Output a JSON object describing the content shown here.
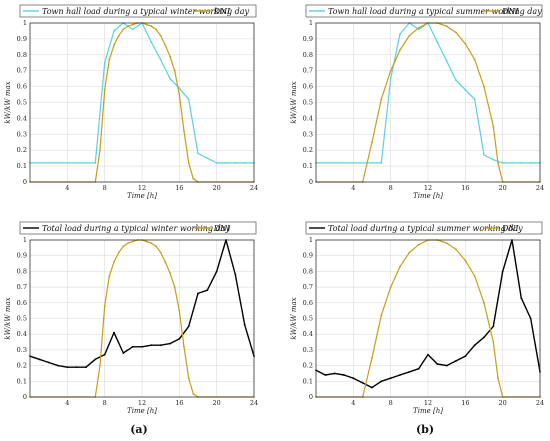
{
  "panel_labels": [
    "(a)",
    "(b)"
  ],
  "colors": {
    "town": "#5ccfe6",
    "dni": "#c99d1a",
    "total": "#000000"
  },
  "chart_data": [
    {
      "type": "line",
      "xlabel": "Time [h]",
      "ylabel": "kW/kW max",
      "xlim": [
        0,
        24
      ],
      "ylim": [
        0,
        1
      ],
      "xticks": [
        4,
        8,
        12,
        16,
        20,
        24
      ],
      "yticks": [
        0,
        0.1,
        0.2,
        0.3,
        0.4,
        0.5,
        0.6,
        0.7,
        0.8,
        0.9,
        1
      ],
      "grid": true,
      "legend_position": "top",
      "series": [
        {
          "name": "Town hall load during a typical winter working day",
          "color": "#5ccfe6",
          "x": [
            0,
            7,
            8,
            9,
            10,
            11,
            12,
            13,
            14,
            15,
            16,
            17,
            18,
            19,
            20,
            21,
            22,
            23,
            24
          ],
          "y": [
            0.12,
            0.12,
            0.75,
            0.95,
            1.0,
            0.96,
            1.0,
            0.88,
            0.77,
            0.65,
            0.59,
            0.52,
            0.18,
            0.15,
            0.12,
            0.12,
            0.12,
            0.12,
            0.12
          ]
        },
        {
          "name": "DNI",
          "color": "#c99d1a",
          "x": [
            0,
            7,
            7.5,
            8,
            8.5,
            9,
            9.5,
            10,
            10.5,
            11,
            11.5,
            12,
            12.5,
            13,
            13.5,
            14,
            14.5,
            15,
            15.5,
            16,
            16.5,
            17,
            17.5,
            18,
            24
          ],
          "y": [
            0,
            0,
            0.2,
            0.58,
            0.77,
            0.86,
            0.92,
            0.96,
            0.98,
            0.99,
            1.0,
            1.0,
            0.99,
            0.98,
            0.96,
            0.92,
            0.86,
            0.79,
            0.7,
            0.55,
            0.32,
            0.12,
            0.02,
            0,
            0
          ]
        }
      ]
    },
    {
      "type": "line",
      "xlabel": "Time [h]",
      "ylabel": "kW/kW max",
      "xlim": [
        0,
        24
      ],
      "ylim": [
        0,
        1
      ],
      "xticks": [
        4,
        8,
        12,
        16,
        20,
        24
      ],
      "yticks": [
        0,
        0.1,
        0.2,
        0.3,
        0.4,
        0.5,
        0.6,
        0.7,
        0.8,
        0.9,
        1
      ],
      "grid": true,
      "legend_position": "top",
      "series": [
        {
          "name": "Town hall load during a typical summer working day",
          "color": "#5ccfe6",
          "x": [
            0,
            7,
            8,
            9,
            10,
            11,
            12,
            13,
            14,
            15,
            16,
            17,
            18,
            19,
            20,
            21,
            22,
            23,
            24
          ],
          "y": [
            0.12,
            0.12,
            0.65,
            0.93,
            1.0,
            0.96,
            1.0,
            0.88,
            0.76,
            0.64,
            0.58,
            0.52,
            0.17,
            0.14,
            0.12,
            0.12,
            0.12,
            0.12,
            0.12
          ]
        },
        {
          "name": "DNI",
          "color": "#c99d1a",
          "x": [
            0,
            5,
            6,
            7,
            8,
            9,
            10,
            11,
            12,
            13,
            14,
            15,
            16,
            17,
            18,
            19,
            19.5,
            20,
            24
          ],
          "y": [
            0,
            0,
            0.25,
            0.52,
            0.7,
            0.83,
            0.92,
            0.97,
            1.0,
            1.0,
            0.98,
            0.94,
            0.87,
            0.77,
            0.6,
            0.35,
            0.12,
            0,
            0
          ]
        }
      ]
    },
    {
      "type": "line",
      "xlabel": "Time [h]",
      "ylabel": "kW/kW max",
      "xlim": [
        0,
        24
      ],
      "ylim": [
        0,
        1
      ],
      "xticks": [
        4,
        8,
        12,
        16,
        20,
        24
      ],
      "yticks": [
        0,
        0.1,
        0.2,
        0.3,
        0.4,
        0.5,
        0.6,
        0.7,
        0.8,
        0.9,
        1
      ],
      "grid": true,
      "legend_position": "top",
      "series": [
        {
          "name": "Total load during a typical winter working day",
          "color": "#000000",
          "x": [
            0,
            1,
            2,
            3,
            4,
            5,
            6,
            7,
            8,
            9,
            10,
            11,
            12,
            13,
            14,
            15,
            16,
            17,
            18,
            19,
            20,
            21,
            22,
            23,
            24
          ],
          "y": [
            0.26,
            0.24,
            0.22,
            0.2,
            0.19,
            0.19,
            0.19,
            0.24,
            0.27,
            0.41,
            0.28,
            0.32,
            0.32,
            0.33,
            0.33,
            0.34,
            0.37,
            0.45,
            0.66,
            0.68,
            0.8,
            1.0,
            0.78,
            0.46,
            0.26
          ]
        },
        {
          "name": "DNI",
          "color": "#c99d1a",
          "x": [
            0,
            7,
            7.5,
            8,
            8.5,
            9,
            9.5,
            10,
            10.5,
            11,
            11.5,
            12,
            12.5,
            13,
            13.5,
            14,
            14.5,
            15,
            15.5,
            16,
            16.5,
            17,
            17.5,
            18,
            24
          ],
          "y": [
            0,
            0,
            0.2,
            0.58,
            0.77,
            0.86,
            0.92,
            0.96,
            0.98,
            0.99,
            1.0,
            1.0,
            0.99,
            0.98,
            0.96,
            0.92,
            0.86,
            0.79,
            0.7,
            0.55,
            0.32,
            0.12,
            0.02,
            0,
            0
          ]
        }
      ]
    },
    {
      "type": "line",
      "xlabel": "Time [h]",
      "ylabel": "kW/kW max",
      "xlim": [
        0,
        24
      ],
      "ylim": [
        0,
        1
      ],
      "xticks": [
        4,
        8,
        12,
        16,
        20,
        24
      ],
      "yticks": [
        0,
        0.1,
        0.2,
        0.3,
        0.4,
        0.5,
        0.6,
        0.7,
        0.8,
        0.9,
        1
      ],
      "grid": true,
      "legend_position": "top",
      "series": [
        {
          "name": "Total load during a typical summer working day",
          "color": "#000000",
          "x": [
            0,
            1,
            2,
            3,
            4,
            5,
            6,
            7,
            8,
            9,
            10,
            11,
            12,
            13,
            14,
            15,
            16,
            17,
            18,
            19,
            20,
            21,
            22,
            23,
            24
          ],
          "y": [
            0.17,
            0.14,
            0.15,
            0.14,
            0.12,
            0.09,
            0.06,
            0.1,
            0.12,
            0.14,
            0.16,
            0.18,
            0.27,
            0.21,
            0.2,
            0.23,
            0.26,
            0.33,
            0.38,
            0.45,
            0.8,
            1.0,
            0.63,
            0.5,
            0.16
          ]
        },
        {
          "name": "DNI",
          "color": "#c99d1a",
          "x": [
            0,
            5,
            6,
            7,
            8,
            9,
            10,
            11,
            12,
            13,
            14,
            15,
            16,
            17,
            18,
            19,
            19.5,
            20,
            24
          ],
          "y": [
            0,
            0,
            0.25,
            0.52,
            0.7,
            0.83,
            0.92,
            0.97,
            1.0,
            1.0,
            0.98,
            0.94,
            0.87,
            0.77,
            0.6,
            0.35,
            0.12,
            0,
            0
          ]
        }
      ]
    }
  ]
}
